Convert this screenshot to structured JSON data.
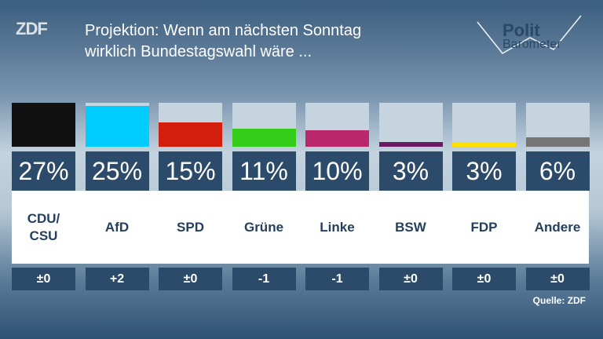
{
  "chart_data": {
    "type": "bar",
    "title": [
      "Projektion: Wenn am nächsten Sonntag",
      "wirklich Bundestagswahl wäre ..."
    ],
    "logo": "ZDF",
    "brand": [
      "Polit",
      "Barometer"
    ],
    "categories": [
      "CDU/\nCSU",
      "AfD",
      "SPD",
      "Grüne",
      "Linke",
      "BSW",
      "FDP",
      "Andere"
    ],
    "values": [
      27,
      25,
      15,
      11,
      10,
      3,
      3,
      6
    ],
    "value_labels": [
      "27%",
      "25%",
      "15%",
      "11%",
      "10%",
      "3%",
      "3%",
      "6%"
    ],
    "colors": [
      "#111111",
      "#00ccff",
      "#d21e0c",
      "#33cc19",
      "#b9286c",
      "#6a1a62",
      "#ffdf00",
      "#757575"
    ],
    "changes": [
      "±0",
      "+2",
      "±0",
      "-1",
      "-1",
      "±0",
      "±0",
      "±0"
    ],
    "ylim": [
      0,
      27
    ],
    "source": "Quelle: ZDF"
  }
}
